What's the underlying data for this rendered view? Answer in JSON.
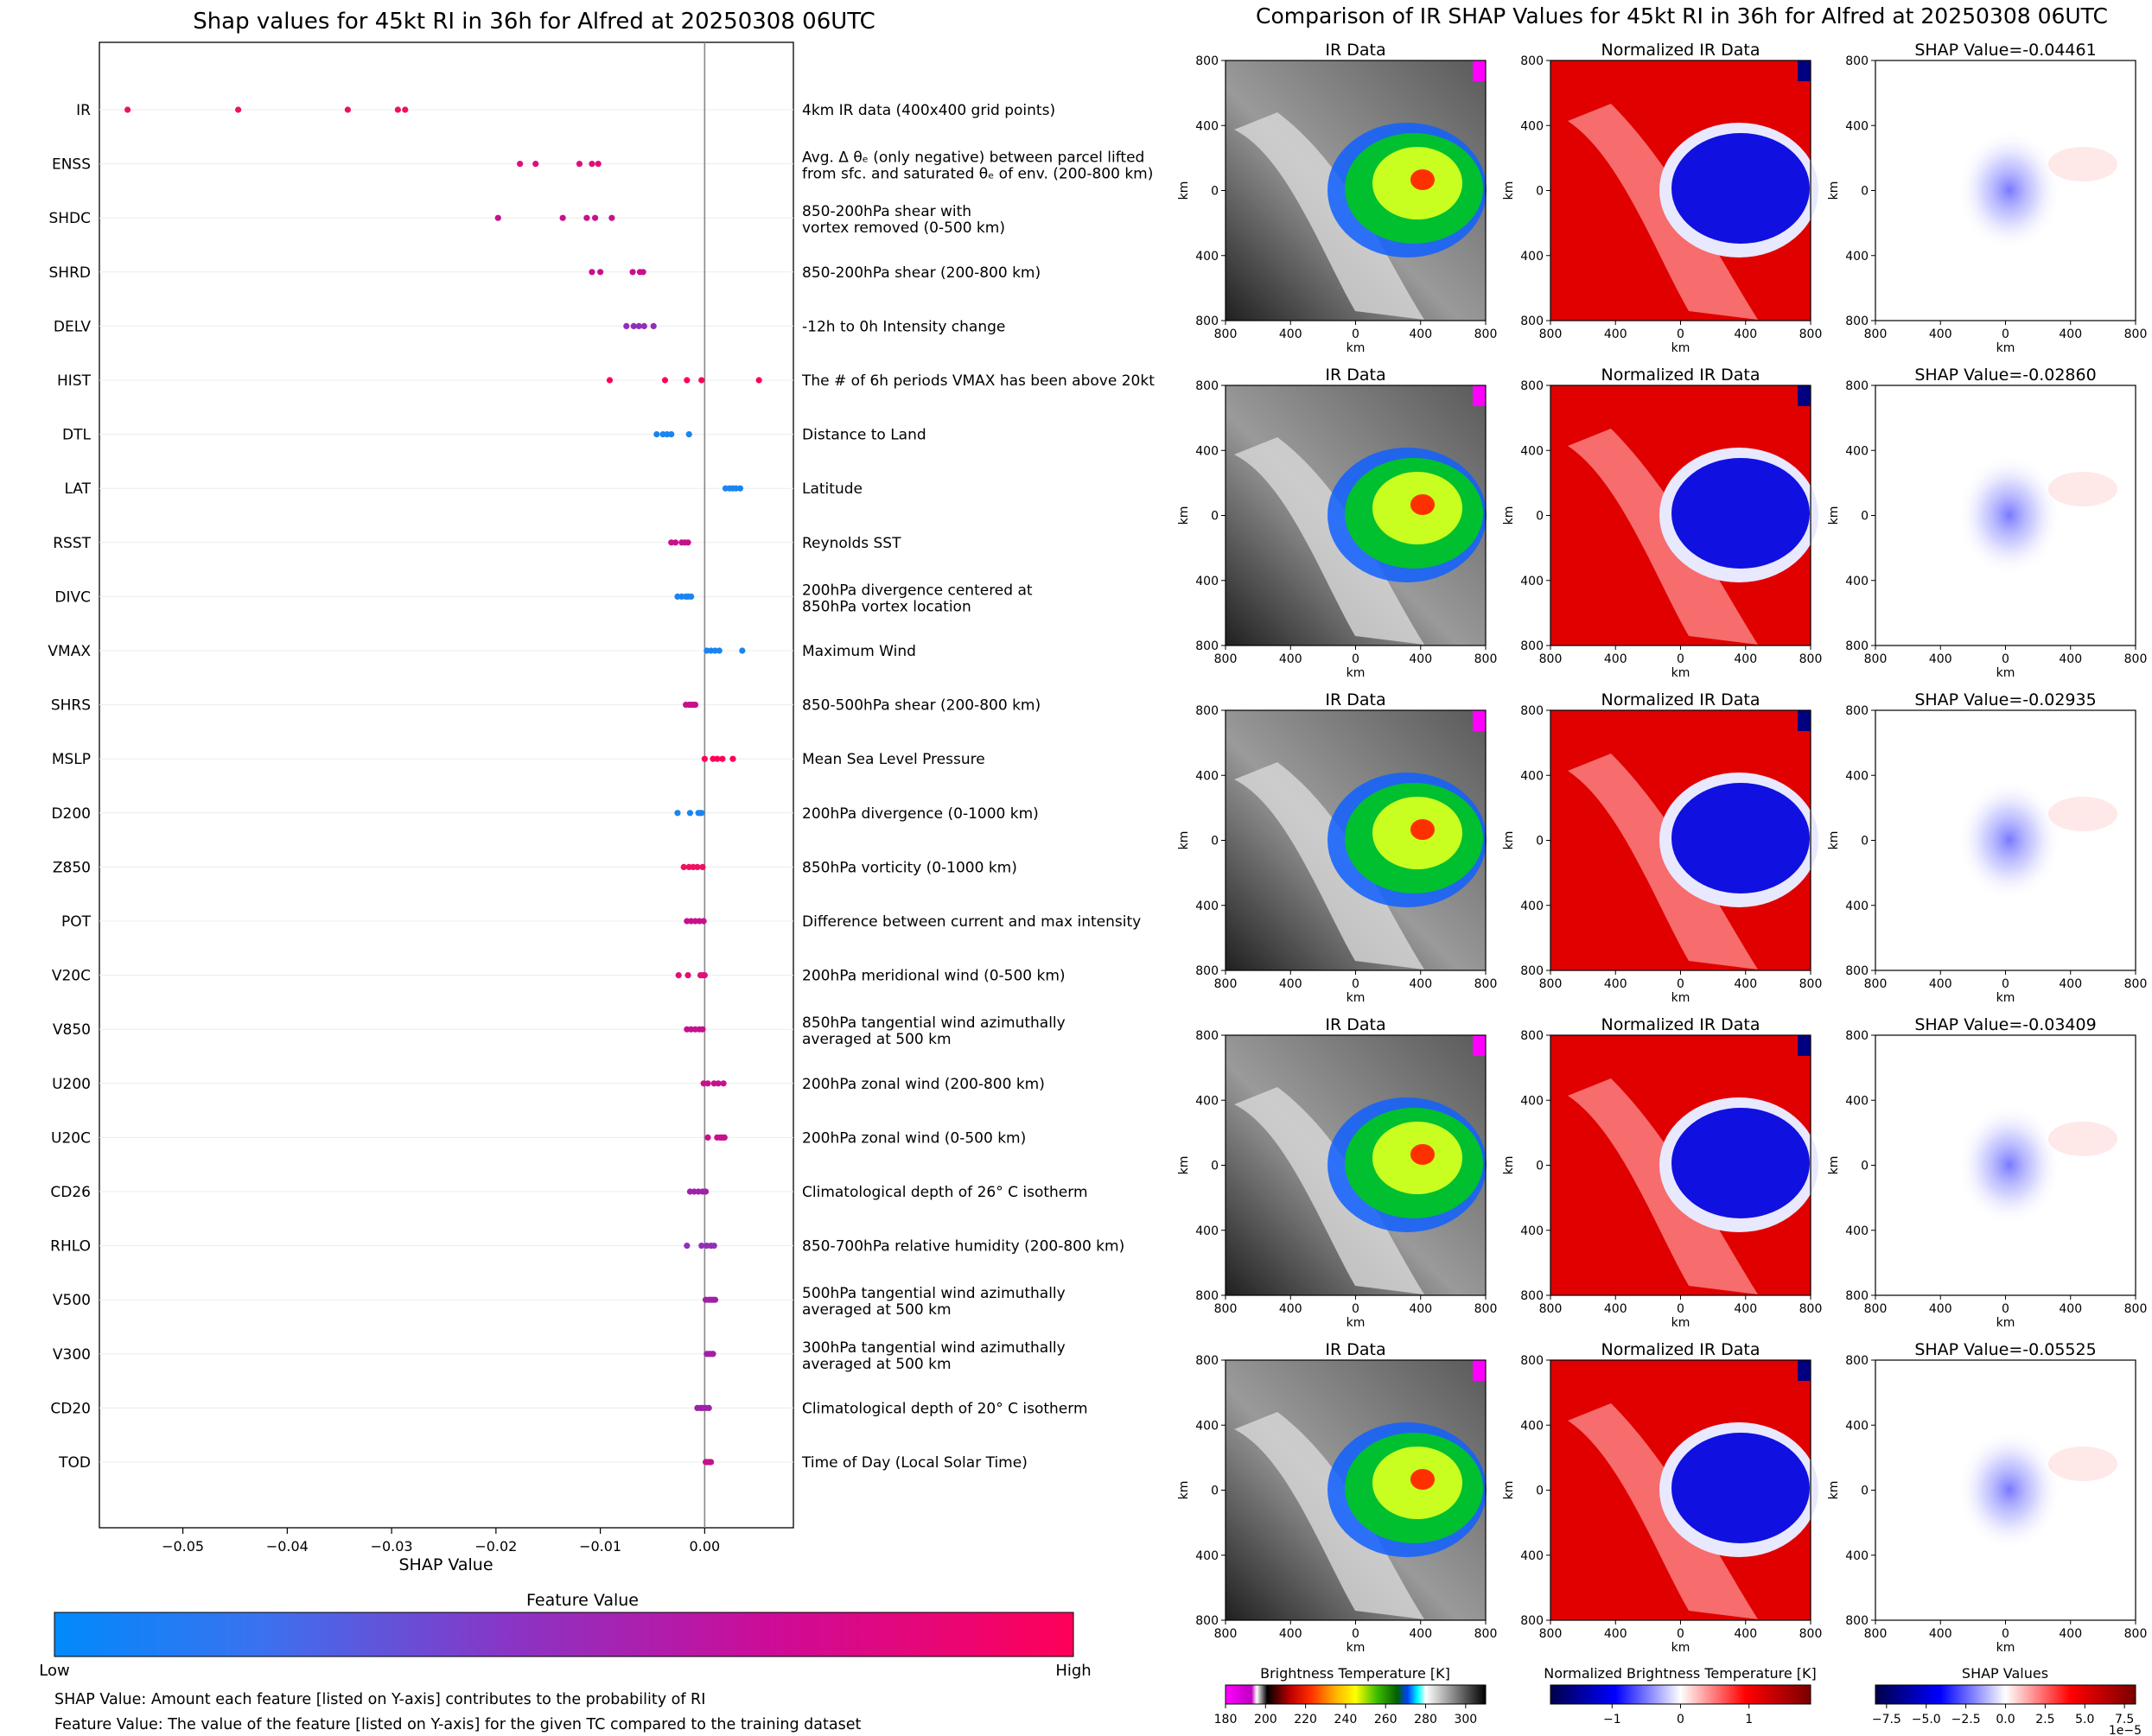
{
  "chart_data": [
    {
      "type": "scatter",
      "title": "Shap values for 45kt RI in 36h for Alfred at 20250308 06UTC",
      "xlabel": "SHAP Value",
      "xlim": [
        -0.058,
        0.0085
      ],
      "xticks": [
        -0.05,
        -0.04,
        -0.03,
        -0.02,
        -0.01,
        0.0
      ],
      "xtick_labels": [
        "−0.05",
        "−0.04",
        "−0.03",
        "−0.02",
        "−0.01",
        "0.00"
      ],
      "grid": "faint horizontal lines per feature",
      "vline_at": 0,
      "colorbar": {
        "title": "Feature Value",
        "low_label": "Low",
        "high_label": "High",
        "colors": [
          "#008afb",
          "#5a5ae6",
          "#9a20b0",
          "#d00090",
          "#ff0059"
        ]
      },
      "features": [
        {
          "name": "IR",
          "desc": [
            "4km IR data (400x400 grid points)"
          ],
          "shap": [
            -0.0553,
            -0.0447,
            -0.0342,
            -0.0294,
            -0.0287
          ],
          "color": "#f01060"
        },
        {
          "name": "ENSS",
          "desc": [
            "Avg. Δ θₑ (only negative) between parcel lifted",
            "from sfc. and saturated θₑ of env. (200-800 km)"
          ],
          "shap": [
            -0.0177,
            -0.0162,
            -0.012,
            -0.0108,
            -0.0102
          ],
          "color": "#e0107a"
        },
        {
          "name": "SHDC",
          "desc": [
            "850-200hPa shear with",
            "vortex removed (0-500 km)"
          ],
          "shap": [
            -0.0198,
            -0.0136,
            -0.0113,
            -0.0105,
            -0.0089
          ],
          "color": "#c8108c"
        },
        {
          "name": "SHRD",
          "desc": [
            "850-200hPa shear (200-800 km)"
          ],
          "shap": [
            -0.0108,
            -0.01,
            -0.0069,
            -0.0062,
            -0.0059
          ],
          "color": "#c8108c"
        },
        {
          "name": "DELV",
          "desc": [
            "-12h to 0h Intensity change"
          ],
          "shap": [
            -0.0075,
            -0.0068,
            -0.0063,
            -0.0058,
            -0.0049
          ],
          "color": "#9030b8"
        },
        {
          "name": "HIST",
          "desc": [
            "The # of 6h periods VMAX has been above 20kt"
          ],
          "shap": [
            -0.0091,
            -0.0038,
            -0.0017,
            -0.0003,
            0.0052
          ],
          "color": "#ff0059"
        },
        {
          "name": "DTL",
          "desc": [
            "Distance to Land"
          ],
          "shap": [
            -0.0046,
            -0.004,
            -0.0036,
            -0.0032,
            -0.0015
          ],
          "color": "#1a84f0"
        },
        {
          "name": "LAT",
          "desc": [
            "Latitude"
          ],
          "shap": [
            0.002,
            0.0024,
            0.0027,
            0.003,
            0.0034
          ],
          "color": "#1a84f0"
        },
        {
          "name": "RSST",
          "desc": [
            "Reynolds SST"
          ],
          "shap": [
            -0.0032,
            -0.0028,
            -0.0022,
            -0.0019,
            -0.0016
          ],
          "color": "#c8108c"
        },
        {
          "name": "DIVC",
          "desc": [
            "200hPa divergence centered at",
            "850hPa vortex location"
          ],
          "shap": [
            -0.0026,
            -0.0022,
            -0.0018,
            -0.0016,
            -0.0013
          ],
          "color": "#1a84f0"
        },
        {
          "name": "VMAX",
          "desc": [
            "Maximum Wind"
          ],
          "shap": [
            0.0002,
            0.0006,
            0.001,
            0.0014,
            0.0036
          ],
          "color": "#1a84f0"
        },
        {
          "name": "SHRS",
          "desc": [
            "850-500hPa shear (200-800 km)"
          ],
          "shap": [
            -0.0018,
            -0.0015,
            -0.0013,
            -0.0011,
            -0.0009
          ],
          "color": "#c8108c"
        },
        {
          "name": "MSLP",
          "desc": [
            "Mean Sea Level Pressure"
          ],
          "shap": [
            0.0,
            0.0008,
            0.0012,
            0.0017,
            0.0027
          ],
          "color": "#ff0059"
        },
        {
          "name": "D200",
          "desc": [
            "200hPa divergence (0-1000 km)"
          ],
          "shap": [
            -0.0026,
            -0.0014,
            -0.0006,
            -0.0004,
            -0.0003
          ],
          "color": "#1a84f0"
        },
        {
          "name": "Z850",
          "desc": [
            "850hPa vorticity (0-1000 km)"
          ],
          "shap": [
            -0.002,
            -0.0015,
            -0.0011,
            -0.0007,
            -0.0002
          ],
          "color": "#f01060"
        },
        {
          "name": "POT",
          "desc": [
            "Difference between current and max intensity"
          ],
          "shap": [
            -0.0017,
            -0.0013,
            -0.0009,
            -0.0005,
            -0.0001
          ],
          "color": "#c8108c"
        },
        {
          "name": "V20C",
          "desc": [
            "200hPa meridional wind (0-500 km)"
          ],
          "shap": [
            -0.0025,
            -0.0016,
            -0.0004,
            -0.0002,
            0.0
          ],
          "color": "#e0107a"
        },
        {
          "name": "V850",
          "desc": [
            "850hPa tangential wind azimuthally",
            "averaged at 500 km"
          ],
          "shap": [
            -0.0017,
            -0.0013,
            -0.0009,
            -0.0005,
            -0.0002
          ],
          "color": "#c8108c"
        },
        {
          "name": "U200",
          "desc": [
            "200hPa zonal wind (200-800 km)"
          ],
          "shap": [
            -0.0001,
            0.0003,
            0.0009,
            0.0013,
            0.0018
          ],
          "color": "#c8108c"
        },
        {
          "name": "U20C",
          "desc": [
            "200hPa zonal wind (0-500 km)"
          ],
          "shap": [
            0.0003,
            0.0012,
            0.0015,
            0.0017,
            0.0019
          ],
          "color": "#c8108c"
        },
        {
          "name": "CD26",
          "desc": [
            "Climatological depth of 26° C isotherm"
          ],
          "shap": [
            -0.0014,
            -0.001,
            -0.0006,
            -0.0002,
            0.0001
          ],
          "color": "#a020a8"
        },
        {
          "name": "RHLO",
          "desc": [
            "850-700hPa relative humidity (200-800 km)"
          ],
          "shap": [
            -0.0017,
            -0.0003,
            0.0002,
            0.0006,
            0.0009
          ],
          "color": "#9030b8"
        },
        {
          "name": "V500",
          "desc": [
            "500hPa tangential wind azimuthally",
            "averaged at 500 km"
          ],
          "shap": [
            0.0001,
            0.0004,
            0.0006,
            0.0008,
            0.001
          ],
          "color": "#a020a8"
        },
        {
          "name": "V300",
          "desc": [
            "300hPa tangential wind azimuthally",
            "averaged at 500 km"
          ],
          "shap": [
            0.0002,
            0.0004,
            0.0005,
            0.0007,
            0.0008
          ],
          "color": "#a020a8"
        },
        {
          "name": "CD20",
          "desc": [
            "Climatological depth of 20° C isotherm"
          ],
          "shap": [
            -0.0007,
            -0.0004,
            -0.0002,
            0.0001,
            0.0004
          ],
          "color": "#a020a8"
        },
        {
          "name": "TOD",
          "desc": [
            "Time of Day (Local Solar Time)"
          ],
          "shap": [
            0.0001,
            0.0002,
            0.0004,
            0.0005,
            0.0006
          ],
          "color": "#c8108c"
        }
      ]
    },
    {
      "type": "heatmap",
      "title": "Comparison of IR SHAP Values for 45kt RI in 36h for Alfred at 20250308 06UTC",
      "axis_unit_label": "km",
      "axis_ticks": [
        "800",
        "400",
        "0",
        "400",
        "800"
      ],
      "columns": [
        {
          "title": "IR Data"
        },
        {
          "title": "Normalized IR Data"
        },
        {
          "title": "SHAP Value"
        }
      ],
      "rows": [
        {
          "shap_value": "-0.04461"
        },
        {
          "shap_value": "-0.02860"
        },
        {
          "shap_value": "-0.02935"
        },
        {
          "shap_value": "-0.03409"
        },
        {
          "shap_value": "-0.05525"
        }
      ],
      "colorbars": [
        {
          "title": "Brightness Temperature [K]",
          "ticks": [
            "180",
            "200",
            "220",
            "240",
            "260",
            "280",
            "300"
          ],
          "range": [
            180,
            310
          ]
        },
        {
          "title": "Normalized Brightness Temperature [K]",
          "ticks": [
            "−1",
            "0",
            "1"
          ],
          "range": [
            -1.9,
            1.9
          ]
        },
        {
          "title": "SHAP Values",
          "ticks": [
            "−7.5",
            "−5.0",
            "−2.5",
            "0.0",
            "2.5",
            "5.0",
            "7.5"
          ],
          "range": [
            -8.2,
            8.2
          ],
          "multiplier": "1e−5"
        }
      ]
    }
  ],
  "footnotes": [
    "SHAP Value: Amount each feature [listed on Y-axis] contributes to the probability of RI",
    "Feature Value: The value of the feature [listed on Y-axis] for the given TC compared to the training dataset"
  ]
}
